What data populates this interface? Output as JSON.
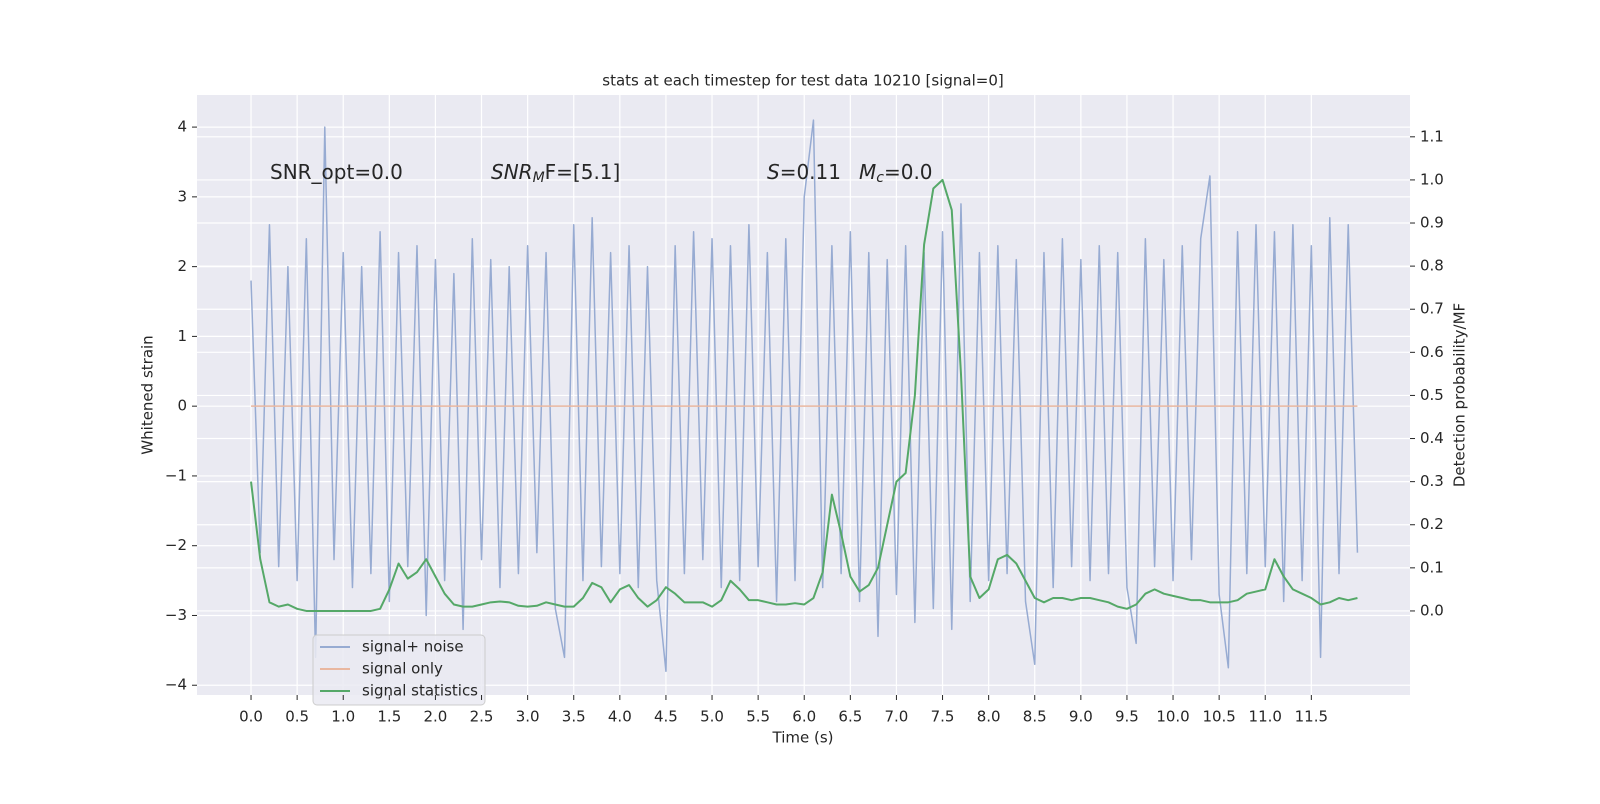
{
  "chart_data": {
    "type": "line",
    "title": "stats at each timestep for test data 10210 [signal=0]",
    "xlabel": "Time (s)",
    "ylabel": "Whitened strain",
    "y2label": "Detection probability/MF",
    "annotations": [
      [
        "SNR_opt=0.0"
      ],
      [
        "SNR",
        "M",
        "F=[5.1]"
      ],
      [
        "S",
        "=0.11"
      ],
      [
        "M",
        "c",
        "=0.0"
      ]
    ],
    "xlim": [
      -0.586,
      12.57
    ],
    "ylim": [
      -4.14,
      4.46
    ],
    "y2lim": [
      -0.195,
      1.197
    ],
    "xticks": [
      {
        "value": 0,
        "label": "0.0"
      },
      {
        "value": 0.5,
        "label": "0.5"
      },
      {
        "value": 1,
        "label": "1.0"
      },
      {
        "value": 1.5,
        "label": "1.5"
      },
      {
        "value": 2,
        "label": "2.0"
      },
      {
        "value": 2.5,
        "label": "2.5"
      },
      {
        "value": 3,
        "label": "3.0"
      },
      {
        "value": 3.5,
        "label": "3.5"
      },
      {
        "value": 4,
        "label": "4.0"
      },
      {
        "value": 4.5,
        "label": "4.5"
      },
      {
        "value": 5,
        "label": "5.0"
      },
      {
        "value": 5.5,
        "label": "5.5"
      },
      {
        "value": 6,
        "label": "6.0"
      },
      {
        "value": 6.5,
        "label": "6.5"
      },
      {
        "value": 7,
        "label": "7.0"
      },
      {
        "value": 7.5,
        "label": "7.5"
      },
      {
        "value": 8,
        "label": "8.0"
      },
      {
        "value": 8.5,
        "label": "8.5"
      },
      {
        "value": 9,
        "label": "9.0"
      },
      {
        "value": 9.5,
        "label": "9.5"
      },
      {
        "value": 10,
        "label": "10.0"
      },
      {
        "value": 10.5,
        "label": "10.5"
      },
      {
        "value": 11,
        "label": "11.0"
      },
      {
        "value": 11.5,
        "label": "11.5"
      }
    ],
    "yticks": [
      {
        "value": -4,
        "label": "−4"
      },
      {
        "value": -3,
        "label": "−3"
      },
      {
        "value": -2,
        "label": "−2"
      },
      {
        "value": -1,
        "label": "−1"
      },
      0,
      1,
      2,
      3,
      4
    ],
    "y2ticks": [
      {
        "value": 0,
        "label": "0.0"
      },
      {
        "value": 0.1,
        "label": "0.1"
      },
      {
        "value": 0.2,
        "label": "0.2"
      },
      {
        "value": 0.3,
        "label": "0.3"
      },
      {
        "value": 0.4,
        "label": "0.4"
      },
      {
        "value": 0.5,
        "label": "0.5"
      },
      {
        "value": 0.6,
        "label": "0.6"
      },
      {
        "value": 0.7,
        "label": "0.7"
      },
      {
        "value": 0.8,
        "label": "0.8"
      },
      {
        "value": 0.9,
        "label": "0.9"
      },
      {
        "value": 1,
        "label": "1.0"
      },
      {
        "value": 1.1,
        "label": "1.1"
      }
    ],
    "grid": true,
    "legend": "lower left",
    "x": [
      0,
      0.1,
      0.2,
      0.3,
      0.4,
      0.5,
      0.6,
      0.7,
      0.8,
      0.9,
      1,
      1.1,
      1.2,
      1.3,
      1.4,
      1.5,
      1.6,
      1.7,
      1.8,
      1.9,
      2,
      2.1,
      2.2,
      2.3,
      2.4,
      2.5,
      2.6,
      2.7,
      2.8,
      2.9,
      3,
      3.1,
      3.2,
      3.3,
      3.4,
      3.5,
      3.6,
      3.7,
      3.8,
      3.9,
      4,
      4.1,
      4.2,
      4.3,
      4.4,
      4.5,
      4.6,
      4.7,
      4.8,
      4.9,
      5,
      5.1,
      5.2,
      5.3,
      5.4,
      5.5,
      5.6,
      5.7,
      5.8,
      5.9,
      6,
      6.1,
      6.2,
      6.3,
      6.4,
      6.5,
      6.6,
      6.7,
      6.8,
      6.9,
      7,
      7.1,
      7.2,
      7.3,
      7.4,
      7.5,
      7.6,
      7.7,
      7.8,
      7.9,
      8,
      8.1,
      8.2,
      8.3,
      8.4,
      8.5,
      8.6,
      8.7,
      8.8,
      8.9,
      9,
      9.1,
      9.2,
      9.3,
      9.4,
      9.5,
      9.6,
      9.7,
      9.8,
      9.9,
      10,
      10.1,
      10.2,
      10.3,
      10.4,
      10.5,
      10.6,
      10.7,
      10.8,
      10.9,
      11,
      11.1,
      11.2,
      11.3,
      11.4,
      11.5,
      11.6,
      11.7,
      11.8,
      11.9,
      12
    ],
    "series": [
      {
        "name": "signal+ noise",
        "color": "#97abd2",
        "values": [
          1.8,
          -2.1,
          2.6,
          -2.3,
          2.0,
          -2.5,
          2.4,
          -3.6,
          4.0,
          -2.2,
          2.2,
          -2.6,
          2.0,
          -2.4,
          2.5,
          -2.8,
          2.2,
          -2.3,
          2.3,
          -3.0,
          2.1,
          -2.5,
          1.9,
          -3.2,
          2.4,
          -2.2,
          2.1,
          -2.6,
          2.0,
          -2.4,
          2.3,
          -2.1,
          2.2,
          -2.9,
          -3.6,
          2.6,
          -2.5,
          2.7,
          -2.3,
          2.2,
          -2.4,
          2.3,
          -2.6,
          2.0,
          -2.5,
          -3.8,
          2.3,
          -2.4,
          2.5,
          -2.2,
          2.4,
          -2.6,
          2.3,
          -2.5,
          2.6,
          -2.3,
          2.2,
          -2.8,
          2.4,
          -2.5,
          3.0,
          4.1,
          -2.6,
          2.3,
          -2.4,
          2.5,
          -2.8,
          2.2,
          -3.3,
          2.1,
          -2.7,
          2.3,
          -3.1,
          2.2,
          -2.9,
          2.5,
          -3.2,
          2.9,
          -2.8,
          2.2,
          -2.5,
          2.3,
          -2.4,
          2.1,
          -2.8,
          -3.7,
          2.2,
          -2.6,
          2.4,
          -2.3,
          2.1,
          -2.5,
          2.3,
          -2.4,
          2.2,
          -2.6,
          -3.4,
          2.4,
          -2.3,
          2.1,
          -2.5,
          2.3,
          -2.2,
          2.4,
          3.3,
          -2.7,
          -3.75,
          2.5,
          -2.4,
          2.6,
          -2.3,
          2.5,
          -2.8,
          2.6,
          -2.5,
          2.3,
          -3.6,
          2.7,
          -2.4,
          2.6,
          -2.1
        ]
      },
      {
        "name": "signal only",
        "color": "#e9b7a0",
        "x": [
          0,
          12
        ],
        "values": [
          0,
          0
        ]
      },
      {
        "name": "signal statistics",
        "color": "#55a868",
        "axis": "y2",
        "values": [
          0.3,
          0.12,
          0.02,
          0.01,
          0.015,
          0.005,
          0,
          0,
          0,
          0,
          0,
          0,
          0,
          0,
          0.005,
          0.05,
          0.11,
          0.075,
          0.09,
          0.12,
          0.08,
          0.04,
          0.015,
          0.01,
          0.01,
          0.015,
          0.02,
          0.022,
          0.02,
          0.012,
          0.01,
          0.012,
          0.02,
          0.015,
          0.01,
          0.01,
          0.03,
          0.065,
          0.055,
          0.02,
          0.05,
          0.06,
          0.03,
          0.01,
          0.025,
          0.055,
          0.04,
          0.02,
          0.02,
          0.02,
          0.01,
          0.025,
          0.07,
          0.05,
          0.025,
          0.025,
          0.02,
          0.015,
          0.015,
          0.018,
          0.015,
          0.03,
          0.09,
          0.27,
          0.18,
          0.08,
          0.045,
          0.06,
          0.1,
          0.2,
          0.3,
          0.32,
          0.5,
          0.85,
          0.98,
          1.0,
          0.93,
          0.55,
          0.08,
          0.03,
          0.05,
          0.12,
          0.13,
          0.11,
          0.07,
          0.03,
          0.02,
          0.03,
          0.03,
          0.025,
          0.03,
          0.03,
          0.025,
          0.02,
          0.01,
          0.005,
          0.015,
          0.04,
          0.05,
          0.04,
          0.035,
          0.03,
          0.025,
          0.025,
          0.02,
          0.02,
          0.02,
          0.025,
          0.04,
          0.045,
          0.05,
          0.12,
          0.08,
          0.05,
          0.04,
          0.03,
          0.015,
          0.02,
          0.03,
          0.025,
          0.03
        ]
      }
    ]
  }
}
